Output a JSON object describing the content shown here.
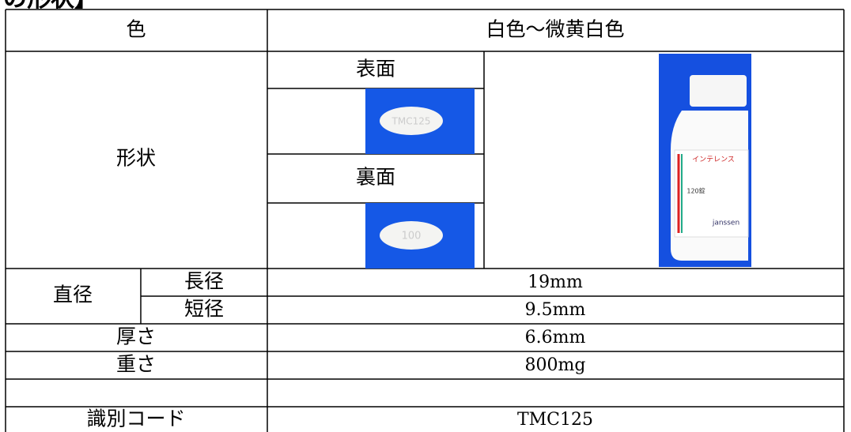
{
  "heading": "の形状】",
  "table": {
    "color": {
      "label": "色",
      "value": "白色～微黄白色"
    },
    "shape": {
      "label": "形状",
      "front_label": "表面",
      "back_label": "裏面",
      "front_imprint": "TMC125",
      "back_imprint": "100",
      "bottle": {
        "brand": "インテレンス",
        "count": "120錠",
        "maker": "janssen"
      }
    },
    "diameter": {
      "label": "直径",
      "rows": [
        {
          "label": "長径",
          "value": "19mm"
        },
        {
          "label": "短径",
          "value": "9.5mm"
        }
      ]
    },
    "rows": [
      {
        "label": "厚さ",
        "value": "6.6mm"
      },
      {
        "label": "重さ",
        "value": "800mg"
      },
      {
        "label": "識別コード",
        "value": "TMC125"
      }
    ]
  }
}
